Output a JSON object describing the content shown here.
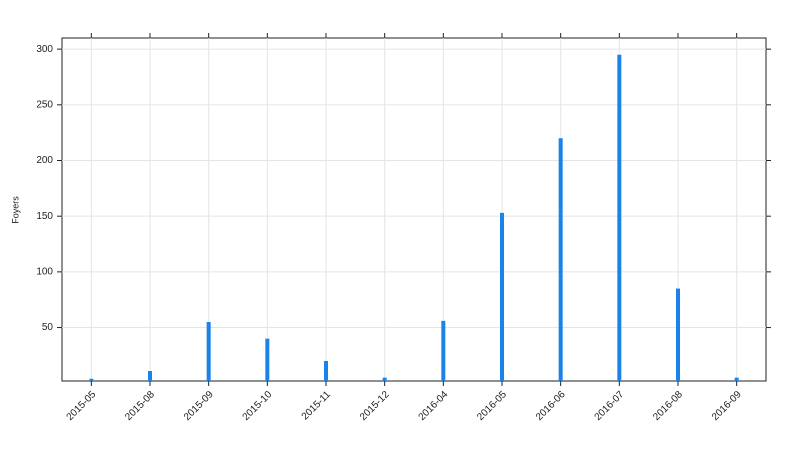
{
  "chart_data": {
    "type": "bar",
    "y_label": "Foyers",
    "categories": [
      "2015-05",
      "2015-08",
      "2015-09",
      "2015-10",
      "2015-11",
      "2015-12",
      "2016-04",
      "2016-05",
      "2016-06",
      "2016-07",
      "2016-08",
      "2016-09"
    ],
    "values": [
      4,
      11,
      55,
      40,
      20,
      5,
      56,
      153,
      220,
      295,
      85,
      5
    ],
    "color": "#1a82ea",
    "ylim": [
      2,
      310
    ],
    "yticks": [
      50,
      100,
      150,
      200,
      250,
      300
    ],
    "grid": true
  }
}
